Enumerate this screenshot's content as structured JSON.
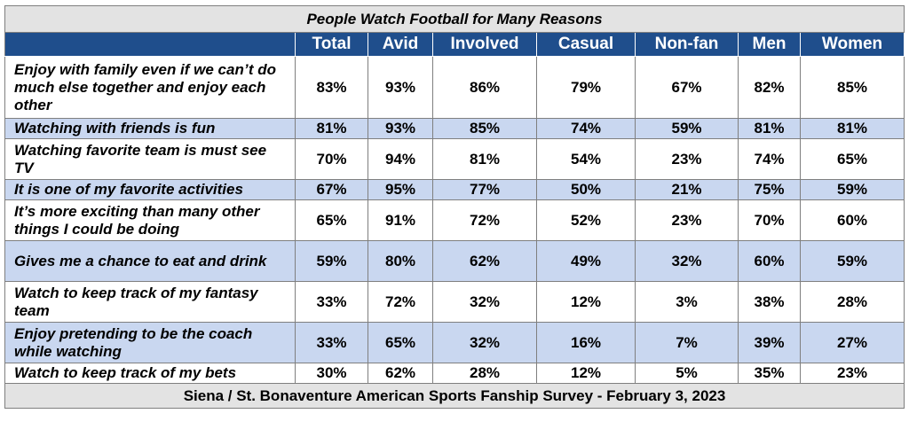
{
  "chart_data": {
    "type": "table",
    "title": "People Watch Football for Many Reasons",
    "columns": [
      "",
      "Total",
      "Avid",
      "Involved",
      "Casual",
      "Non-fan",
      "Men",
      "Women"
    ],
    "rows": [
      {
        "label": "Enjoy with family even if we can’t do much else together and enjoy each other",
        "values": [
          "83%",
          "93%",
          "86%",
          "79%",
          "67%",
          "82%",
          "85%"
        ]
      },
      {
        "label": "Watching with friends is fun",
        "values": [
          "81%",
          "93%",
          "85%",
          "74%",
          "59%",
          "81%",
          "81%"
        ]
      },
      {
        "label": "Watching favorite team is must see TV",
        "values": [
          "70%",
          "94%",
          "81%",
          "54%",
          "23%",
          "74%",
          "65%"
        ]
      },
      {
        "label": "It is one of my favorite activities",
        "values": [
          "67%",
          "95%",
          "77%",
          "50%",
          "21%",
          "75%",
          "59%"
        ]
      },
      {
        "label": "It’s more exciting than many other things I could be doing",
        "values": [
          "65%",
          "91%",
          "72%",
          "52%",
          "23%",
          "70%",
          "60%"
        ]
      },
      {
        "label": "Gives me a chance to eat and drink",
        "values": [
          "59%",
          "80%",
          "62%",
          "49%",
          "32%",
          "60%",
          "59%"
        ]
      },
      {
        "label": "Watch to keep track of my fantasy team",
        "values": [
          "33%",
          "72%",
          "32%",
          "12%",
          "3%",
          "38%",
          "28%"
        ]
      },
      {
        "label": "Enjoy pretending to be the coach while watching",
        "values": [
          "33%",
          "65%",
          "32%",
          "16%",
          "7%",
          "39%",
          "27%"
        ]
      },
      {
        "label": "Watch to keep track of my bets",
        "values": [
          "30%",
          "62%",
          "28%",
          "12%",
          "5%",
          "35%",
          "23%"
        ]
      }
    ],
    "footer": "Siena / St. Bonaventure American Sports Fanship Survey - February 3, 2023"
  },
  "colors": {
    "header_bg": "#1f4e8c",
    "band_bg": "#c9d7f0",
    "title_bg": "#e3e3e3"
  }
}
